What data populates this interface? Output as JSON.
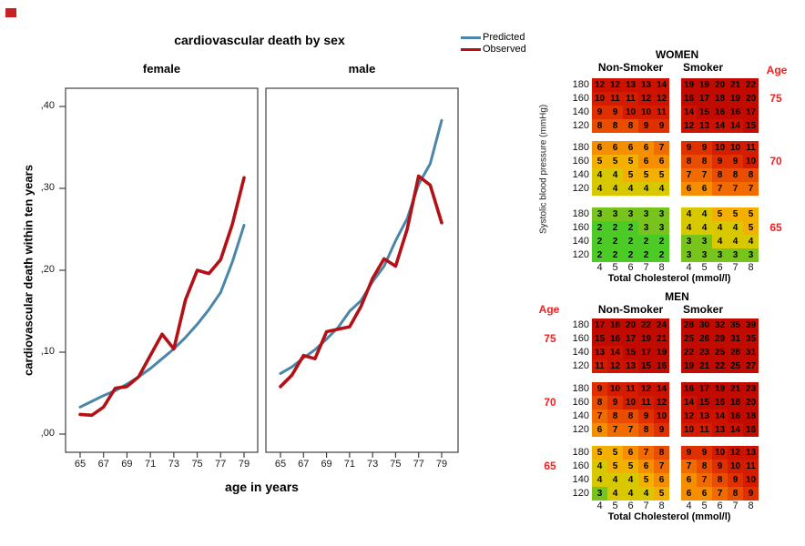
{
  "marker_color": "#c92121",
  "chart_data": [
    {
      "type": "line",
      "title": "cardiovascular death by sex",
      "xlabel": "age in years",
      "ylabel": "cardiovascular death within ten years",
      "x": [
        65,
        66,
        67,
        68,
        69,
        70,
        71,
        72,
        73,
        74,
        75,
        76,
        77,
        78,
        79
      ],
      "x_ticks": [
        65,
        67,
        69,
        71,
        73,
        75,
        77,
        79
      ],
      "y_ticks": [
        {
          "v": 0.0,
          "label": ",00"
        },
        {
          "v": 0.1,
          "label": ",10"
        },
        {
          "v": 0.2,
          "label": ",20"
        },
        {
          "v": 0.3,
          "label": ",30"
        },
        {
          "v": 0.4,
          "label": ",40"
        }
      ],
      "ylim": [
        0,
        0.42
      ],
      "grid": false,
      "legend_position": "top-right",
      "legend": [
        {
          "name": "Predicted",
          "color": "#4a86a8"
        },
        {
          "name": "Observed",
          "color": "#b11117"
        }
      ],
      "panels": [
        {
          "label": "female",
          "series": [
            {
              "name": "Predicted",
              "values": [
                0.033,
                0.04,
                0.047,
                0.053,
                0.061,
                0.07,
                0.08,
                0.092,
                0.104,
                0.118,
                0.134,
                0.152,
                0.173,
                0.21,
                0.255
              ]
            },
            {
              "name": "Observed",
              "values": [
                0.024,
                0.023,
                0.033,
                0.056,
                0.058,
                0.07,
                0.096,
                0.122,
                0.104,
                0.164,
                0.2,
                0.196,
                0.213,
                0.256,
                0.313
              ]
            }
          ]
        },
        {
          "label": "male",
          "series": [
            {
              "name": "Predicted",
              "values": [
                0.074,
                0.082,
                0.093,
                0.103,
                0.116,
                0.13,
                0.15,
                0.163,
                0.186,
                0.205,
                0.236,
                0.263,
                0.305,
                0.33,
                0.383
              ]
            },
            {
              "name": "Observed",
              "values": [
                0.058,
                0.072,
                0.096,
                0.092,
                0.125,
                0.128,
                0.131,
                0.156,
                0.19,
                0.214,
                0.205,
                0.25,
                0.315,
                0.304,
                0.258
              ]
            }
          ]
        }
      ]
    },
    {
      "type": "heatmap",
      "title": "WOMEN",
      "age_label": "Age",
      "age_side": "right",
      "col_headers": [
        "Non-Smoker",
        "Smoker"
      ],
      "row_axis_label": "Systolic blood pressure (mmHg)",
      "col_axis_label": "Total Cholesterol (mmol/l)",
      "sbp_rows": [
        180,
        160,
        140,
        120
      ],
      "chol_cols": [
        4,
        5,
        6,
        7,
        8
      ],
      "blocks": [
        {
          "age": 75,
          "nonsmoker": [
            [
              12,
              12,
              13,
              13,
              14
            ],
            [
              10,
              11,
              11,
              12,
              12
            ],
            [
              9,
              9,
              10,
              10,
              11
            ],
            [
              8,
              8,
              8,
              9,
              9
            ]
          ],
          "smoker": [
            [
              19,
              19,
              20,
              21,
              22
            ],
            [
              16,
              17,
              18,
              19,
              20
            ],
            [
              14,
              15,
              16,
              16,
              17
            ],
            [
              12,
              13,
              14,
              14,
              15
            ]
          ]
        },
        {
          "age": 70,
          "nonsmoker": [
            [
              6,
              6,
              6,
              6,
              7
            ],
            [
              5,
              5,
              5,
              6,
              6
            ],
            [
              4,
              4,
              5,
              5,
              5
            ],
            [
              4,
              4,
              4,
              4,
              4
            ]
          ],
          "smoker": [
            [
              9,
              9,
              10,
              10,
              11
            ],
            [
              8,
              8,
              9,
              9,
              10
            ],
            [
              7,
              7,
              8,
              8,
              8
            ],
            [
              6,
              6,
              7,
              7,
              7
            ]
          ]
        },
        {
          "age": 65,
          "nonsmoker": [
            [
              3,
              3,
              3,
              3,
              3
            ],
            [
              2,
              2,
              2,
              3,
              3
            ],
            [
              2,
              2,
              2,
              2,
              2
            ],
            [
              2,
              2,
              2,
              2,
              2
            ]
          ],
          "smoker": [
            [
              4,
              4,
              5,
              5,
              5
            ],
            [
              4,
              4,
              4,
              4,
              5
            ],
            [
              3,
              3,
              4,
              4,
              4
            ],
            [
              3,
              3,
              3,
              3,
              3
            ]
          ]
        }
      ]
    },
    {
      "type": "heatmap",
      "title": "MEN",
      "age_label": "Age",
      "age_side": "left",
      "col_headers": [
        "Non-Smoker",
        "Smoker"
      ],
      "col_axis_label": "Total Cholesterol (mmol/l)",
      "sbp_rows": [
        180,
        160,
        140,
        120
      ],
      "chol_cols": [
        4,
        5,
        6,
        7,
        8
      ],
      "blocks": [
        {
          "age": 75,
          "nonsmoker": [
            [
              17,
              18,
              20,
              22,
              24
            ],
            [
              15,
              16,
              17,
              19,
              21
            ],
            [
              13,
              14,
              15,
              17,
              19
            ],
            [
              11,
              12,
              13,
              15,
              16
            ]
          ],
          "smoker": [
            [
              28,
              30,
              32,
              35,
              39
            ],
            [
              25,
              26,
              29,
              31,
              35
            ],
            [
              22,
              23,
              25,
              28,
              31
            ],
            [
              19,
              21,
              22,
              25,
              27
            ]
          ]
        },
        {
          "age": 70,
          "nonsmoker": [
            [
              9,
              10,
              11,
              12,
              14
            ],
            [
              8,
              9,
              10,
              11,
              12
            ],
            [
              7,
              8,
              8,
              9,
              10
            ],
            [
              6,
              7,
              7,
              8,
              9
            ]
          ],
          "smoker": [
            [
              16,
              17,
              19,
              21,
              23
            ],
            [
              14,
              15,
              16,
              18,
              20
            ],
            [
              12,
              13,
              14,
              16,
              18
            ],
            [
              10,
              11,
              13,
              14,
              16
            ]
          ]
        },
        {
          "age": 65,
          "nonsmoker": [
            [
              5,
              5,
              6,
              7,
              8
            ],
            [
              4,
              5,
              5,
              6,
              7
            ],
            [
              4,
              4,
              4,
              5,
              6
            ],
            [
              3,
              4,
              4,
              4,
              5
            ]
          ],
          "smoker": [
            [
              9,
              9,
              10,
              12,
              13
            ],
            [
              7,
              8,
              9,
              10,
              11
            ],
            [
              6,
              7,
              8,
              9,
              10
            ],
            [
              6,
              6,
              7,
              8,
              9
            ]
          ]
        }
      ]
    }
  ],
  "risk_color_scale": [
    [
      15,
      "#c10b00"
    ],
    [
      12,
      "#cd1200"
    ],
    [
      10,
      "#d41d00"
    ],
    [
      9,
      "#e03000"
    ],
    [
      8,
      "#e94e00"
    ],
    [
      7,
      "#f26b00"
    ],
    [
      6,
      "#f68f00"
    ],
    [
      5,
      "#f4b000"
    ],
    [
      4,
      "#d8c800"
    ],
    [
      3,
      "#78c31c"
    ],
    [
      2,
      "#4ccb26"
    ],
    [
      0,
      "#3fcf3f"
    ]
  ]
}
